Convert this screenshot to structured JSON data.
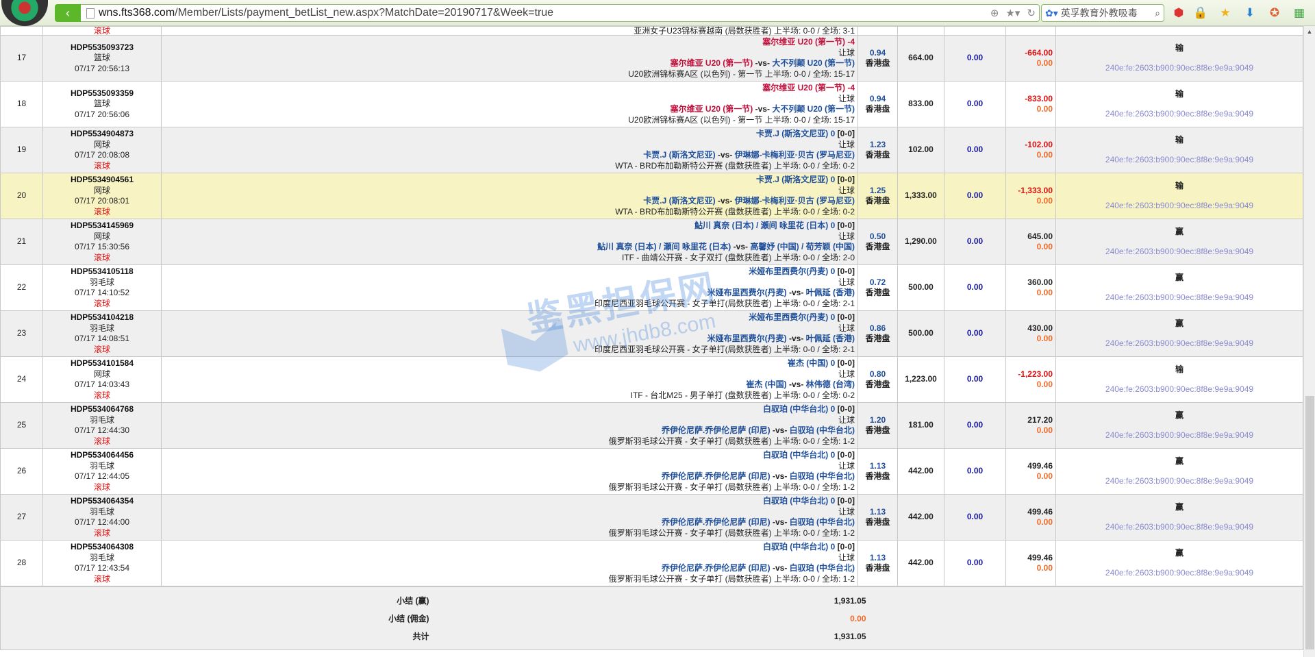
{
  "browser": {
    "url_domain": "wns.fts368.com",
    "url_path": "/Member/Lists/payment_betList_new.aspx?MatchDate=20190717&Week=true",
    "search_text": "英孚教育外教吸毒"
  },
  "top_partial": {
    "live": "滚球",
    "league": "亚洲女子U23锦标赛越南 (局数获胜者)",
    "score": "上半场: 0-0 / 全场: 3-1"
  },
  "colors": {
    "accent": "#5cb82a",
    "negative": "#e01010",
    "team_red": "#c0103a",
    "team_blue": "#1f4f9a",
    "highlight": "#f7f3c2"
  },
  "rows": [
    {
      "no": "17",
      "id": "HDP5535093723",
      "sport": "篮球",
      "time": "07/17 20:56:13",
      "live": "",
      "pick": "塞尔维亚 U20 (第一节)",
      "hcp": "-4",
      "pick_score": "",
      "pick_red": true,
      "bet_type": "让球",
      "team1": "塞尔维亚 U20 (第一节)",
      "team1_red": true,
      "vs": "-vs-",
      "team2": "大不列颠 U20 (第一节)",
      "league": "U20欧洲锦标赛A区 (以色列) - 第一节",
      "score": "上半场: 0-0 / 全场: 15-17",
      "odds": "0.94",
      "odds_type": "香港盘",
      "stake": "664.00",
      "commission": "0.00",
      "winloss": "-664.00",
      "comm2": "0.00",
      "result": "输",
      "ip": "240e:fe:2603:b900:90ec:8f8e:9e9a:9049",
      "bg": "g"
    },
    {
      "no": "18",
      "id": "HDP5535093359",
      "sport": "篮球",
      "time": "07/17 20:56:06",
      "live": "",
      "pick": "塞尔维亚 U20 (第一节)",
      "hcp": "-4",
      "pick_score": "",
      "pick_red": true,
      "bet_type": "让球",
      "team1": "塞尔维亚 U20 (第一节)",
      "team1_red": true,
      "vs": "-vs-",
      "team2": "大不列颠 U20 (第一节)",
      "league": "U20欧洲锦标赛A区 (以色列) - 第一节",
      "score": "上半场: 0-0 / 全场: 15-17",
      "odds": "0.94",
      "odds_type": "香港盘",
      "stake": "833.00",
      "commission": "0.00",
      "winloss": "-833.00",
      "comm2": "0.00",
      "result": "输",
      "ip": "240e:fe:2603:b900:90ec:8f8e:9e9a:9049",
      "bg": "w"
    },
    {
      "no": "19",
      "id": "HDP5534904873",
      "sport": "网球",
      "time": "07/17 20:08:08",
      "live": "滚球",
      "pick": "卡贾.J (斯洛文尼亚)",
      "hcp": "0",
      "pick_score": "[0-0]",
      "bet_type": "让球",
      "team1": "卡贾.J (斯洛文尼亚)",
      "vs": "-vs-",
      "team2": "伊琳娜-卡梅利亚·贝古 (罗马尼亚)",
      "league": "WTA - BRD布加勒斯特公开赛 (盘数获胜者)",
      "score": "上半场: 0-0 / 全场: 0-2",
      "odds": "1.23",
      "odds_type": "香港盘",
      "stake": "102.00",
      "commission": "0.00",
      "winloss": "-102.00",
      "comm2": "0.00",
      "result": "输",
      "ip": "240e:fe:2603:b900:90ec:8f8e:9e9a:9049",
      "bg": "g"
    },
    {
      "no": "20",
      "id": "HDP5534904561",
      "sport": "网球",
      "time": "07/17 20:08:01",
      "live": "滚球",
      "pick": "卡贾.J (斯洛文尼亚)",
      "hcp": "0",
      "pick_score": "[0-0]",
      "bet_type": "让球",
      "team1": "卡贾.J (斯洛文尼亚)",
      "vs": "-vs-",
      "team2": "伊琳娜-卡梅利亚·贝古 (罗马尼亚)",
      "league": "WTA - BRD布加勒斯特公开赛 (盘数获胜者)",
      "score": "上半场: 0-0 / 全场: 0-2",
      "odds": "1.25",
      "odds_type": "香港盘",
      "stake": "1,333.00",
      "commission": "0.00",
      "winloss": "-1,333.00",
      "comm2": "0.00",
      "result": "输",
      "ip": "240e:fe:2603:b900:90ec:8f8e:9e9a:9049",
      "bg": "y"
    },
    {
      "no": "21",
      "id": "HDP5534145969",
      "sport": "网球",
      "time": "07/17 15:30:56",
      "live": "滚球",
      "pick": "鮎川 真奈 (日本) / 瀬间 咏里花 (日本)",
      "hcp": "0",
      "pick_score": "[0-0]",
      "bet_type": "让球",
      "team1": "鮎川 真奈 (日本) / 瀬间 咏里花 (日本)",
      "vs": "-vs-",
      "team2": "高馨妤 (中国) / 荀芳颖 (中国)",
      "league": "ITF - 曲靖公开赛 - 女子双打 (盘数获胜者)",
      "score": "上半场: 0-0 / 全场: 2-0",
      "odds": "0.50",
      "odds_type": "香港盘",
      "stake": "1,290.00",
      "commission": "0.00",
      "winloss": "645.00",
      "comm2": "0.00",
      "result": "赢",
      "ip": "240e:fe:2603:b900:90ec:8f8e:9e9a:9049",
      "bg": "g"
    },
    {
      "no": "22",
      "id": "HDP5534105118",
      "sport": "羽毛球",
      "time": "07/17 14:10:52",
      "live": "滚球",
      "pick": "米娅布里西费尔(丹麦)",
      "hcp": "0",
      "pick_score": "[0-0]",
      "bet_type": "让球",
      "team1": "米娅布里西费尔(丹麦)",
      "vs": "-vs-",
      "team2": "叶佩延 (香港)",
      "league": "印度尼西亚羽毛球公开赛 - 女子单打(局数获胜者)",
      "score": "上半场: 0-0 / 全场: 2-1",
      "odds": "0.72",
      "odds_type": "香港盘",
      "stake": "500.00",
      "commission": "0.00",
      "winloss": "360.00",
      "comm2": "0.00",
      "result": "赢",
      "ip": "240e:fe:2603:b900:90ec:8f8e:9e9a:9049",
      "bg": "w"
    },
    {
      "no": "23",
      "id": "HDP5534104218",
      "sport": "羽毛球",
      "time": "07/17 14:08:51",
      "live": "滚球",
      "pick": "米娅布里西费尔(丹麦)",
      "hcp": "0",
      "pick_score": "[0-0]",
      "bet_type": "让球",
      "team1": "米娅布里西费尔(丹麦)",
      "vs": "-vs-",
      "team2": "叶佩延 (香港)",
      "league": "印度尼西亚羽毛球公开赛 - 女子单打(局数获胜者)",
      "score": "上半场: 0-0 / 全场: 2-1",
      "odds": "0.86",
      "odds_type": "香港盘",
      "stake": "500.00",
      "commission": "0.00",
      "winloss": "430.00",
      "comm2": "0.00",
      "result": "赢",
      "ip": "240e:fe:2603:b900:90ec:8f8e:9e9a:9049",
      "bg": "g"
    },
    {
      "no": "24",
      "id": "HDP5534101584",
      "sport": "网球",
      "time": "07/17 14:03:43",
      "live": "滚球",
      "pick": "崔杰 (中国)",
      "hcp": "0",
      "pick_score": "[0-0]",
      "bet_type": "让球",
      "team1": "崔杰 (中国)",
      "vs": "-vs-",
      "team2": "林伟德 (台湾)",
      "league": "ITF - 台北M25 - 男子单打 (盘数获胜者)",
      "score": "上半场: 0-0 / 全场: 0-2",
      "odds": "0.80",
      "odds_type": "香港盘",
      "stake": "1,223.00",
      "commission": "0.00",
      "winloss": "-1,223.00",
      "comm2": "0.00",
      "result": "输",
      "ip": "240e:fe:2603:b900:90ec:8f8e:9e9a:9049",
      "bg": "w"
    },
    {
      "no": "25",
      "id": "HDP5534064768",
      "sport": "羽毛球",
      "time": "07/17 12:44:30",
      "live": "滚球",
      "pick": "白驭珀 (中华台北)",
      "hcp": "0",
      "pick_score": "[0-0]",
      "bet_type": "让球",
      "team1": "乔伊伦尼萨.乔伊伦尼萨 (印尼)",
      "vs": "-vs-",
      "team2": "白驭珀 (中华台北)",
      "league": "俄罗斯羽毛球公开赛 - 女子单打 (局数获胜者)",
      "score": "上半场: 0-0 / 全场: 1-2",
      "odds": "1.20",
      "odds_type": "香港盘",
      "stake": "181.00",
      "commission": "0.00",
      "winloss": "217.20",
      "comm2": "0.00",
      "result": "赢",
      "ip": "240e:fe:2603:b900:90ec:8f8e:9e9a:9049",
      "bg": "g"
    },
    {
      "no": "26",
      "id": "HDP5534064456",
      "sport": "羽毛球",
      "time": "07/17 12:44:05",
      "live": "滚球",
      "pick": "白驭珀 (中华台北)",
      "hcp": "0",
      "pick_score": "[0-0]",
      "bet_type": "让球",
      "team1": "乔伊伦尼萨.乔伊伦尼萨 (印尼)",
      "vs": "-vs-",
      "team2": "白驭珀 (中华台北)",
      "league": "俄罗斯羽毛球公开赛 - 女子单打 (局数获胜者)",
      "score": "上半场: 0-0 / 全场: 1-2",
      "odds": "1.13",
      "odds_type": "香港盘",
      "stake": "442.00",
      "commission": "0.00",
      "winloss": "499.46",
      "comm2": "0.00",
      "result": "赢",
      "ip": "240e:fe:2603:b900:90ec:8f8e:9e9a:9049",
      "bg": "w"
    },
    {
      "no": "27",
      "id": "HDP5534064354",
      "sport": "羽毛球",
      "time": "07/17 12:44:00",
      "live": "滚球",
      "pick": "白驭珀 (中华台北)",
      "hcp": "0",
      "pick_score": "[0-0]",
      "bet_type": "让球",
      "team1": "乔伊伦尼萨.乔伊伦尼萨 (印尼)",
      "vs": "-vs-",
      "team2": "白驭珀 (中华台北)",
      "league": "俄罗斯羽毛球公开赛 - 女子单打 (局数获胜者)",
      "score": "上半场: 0-0 / 全场: 1-2",
      "odds": "1.13",
      "odds_type": "香港盘",
      "stake": "442.00",
      "commission": "0.00",
      "winloss": "499.46",
      "comm2": "0.00",
      "result": "赢",
      "ip": "240e:fe:2603:b900:90ec:8f8e:9e9a:9049",
      "bg": "g"
    },
    {
      "no": "28",
      "id": "HDP5534064308",
      "sport": "羽毛球",
      "time": "07/17 12:43:54",
      "live": "滚球",
      "pick": "白驭珀 (中华台北)",
      "hcp": "0",
      "pick_score": "[0-0]",
      "bet_type": "让球",
      "team1": "乔伊伦尼萨.乔伊伦尼萨 (印尼)",
      "vs": "-vs-",
      "team2": "白驭珀 (中华台北)",
      "league": "俄罗斯羽毛球公开赛 - 女子单打 (局数获胜者)",
      "score": "上半场: 0-0 / 全场: 1-2",
      "odds": "1.13",
      "odds_type": "香港盘",
      "stake": "442.00",
      "commission": "0.00",
      "winloss": "499.46",
      "comm2": "0.00",
      "result": "赢",
      "ip": "240e:fe:2603:b900:90ec:8f8e:9e9a:9049",
      "bg": "w"
    }
  ],
  "summary": {
    "win_label": "小结 (赢)",
    "win_value": "1,931.05",
    "comm_label": "小结 (佣金)",
    "comm_value": "0.00",
    "total_label": "共计",
    "total_value": "1,931.05"
  },
  "watermark": {
    "title": "鉴黑担保网",
    "url": "www.jhdb8.com"
  }
}
